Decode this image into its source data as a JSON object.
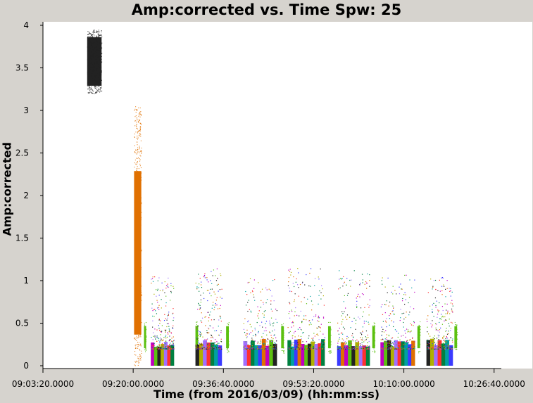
{
  "title": "Amp:corrected vs. Time Spw: 25",
  "chart_data": {
    "type": "scatter",
    "title": "Amp:corrected vs. Time Spw: 25",
    "xlabel": "Time (from 2016/03/09) (hh:mm:ss)",
    "ylabel": "Amp:corrected",
    "x_tick_labels": [
      "09:03:20.0000",
      "09:20:00.0000",
      "09:36:40.0000",
      "09:53:20.0000",
      "10:10:00.0000",
      "10:26:40.0000"
    ],
    "y_tick_labels": [
      "0",
      "0.5",
      "1",
      "1.5",
      "2",
      "2.5",
      "3",
      "3.5",
      "4"
    ],
    "xlim": [
      "09:03:20",
      "10:28:00"
    ],
    "ylim": [
      0,
      4
    ],
    "grid": false,
    "scans": [
      {
        "t_start": "09:11:30",
        "t_end": "09:14:10",
        "amp_min": 3.2,
        "amp_max": 3.95,
        "color": "#222222"
      },
      {
        "t_start": "09:20:10",
        "t_end": "09:21:30",
        "amp_min": 0.0,
        "amp_max": 3.05,
        "color": "#e07000"
      },
      {
        "t_start": "09:22:00",
        "t_end": "09:22:20",
        "amp_min": 0.15,
        "amp_max": 0.52,
        "color": "#5cc010"
      },
      {
        "t_start": "09:23:15",
        "t_end": "09:27:30",
        "amp_min": 0.0,
        "amp_max": 1.05,
        "color": "#3a3aff"
      },
      {
        "t_start": "09:31:30",
        "t_end": "09:32:00",
        "amp_min": 0.15,
        "amp_max": 0.52,
        "color": "#5cc010"
      },
      {
        "t_start": "09:31:30",
        "t_end": "09:36:20",
        "amp_min": 0.0,
        "amp_max": 1.15,
        "color": "#00a0a0"
      },
      {
        "t_start": "09:37:10",
        "t_end": "09:37:40",
        "amp_min": 0.15,
        "amp_max": 0.52,
        "color": "#5cc010"
      },
      {
        "t_start": "09:40:20",
        "t_end": "09:46:30",
        "amp_min": 0.0,
        "amp_max": 1.05,
        "color": "#c000c0"
      },
      {
        "t_start": "09:47:20",
        "t_end": "09:47:50",
        "amp_min": 0.15,
        "amp_max": 0.52,
        "color": "#5cc010"
      },
      {
        "t_start": "09:48:30",
        "t_end": "09:55:20",
        "amp_min": 0.0,
        "amp_max": 1.15,
        "color": "#e07000"
      },
      {
        "t_start": "09:56:00",
        "t_end": "09:56:30",
        "amp_min": 0.15,
        "amp_max": 0.52,
        "color": "#5cc010"
      },
      {
        "t_start": "09:57:40",
        "t_end": "10:03:40",
        "amp_min": 0.0,
        "amp_max": 1.15,
        "color": "#3a3aff"
      },
      {
        "t_start": "10:04:10",
        "t_end": "10:04:40",
        "amp_min": 0.15,
        "amp_max": 0.52,
        "color": "#5cc010"
      },
      {
        "t_start": "10:05:40",
        "t_end": "10:12:00",
        "amp_min": 0.0,
        "amp_max": 1.1,
        "color": "#00a0a0"
      },
      {
        "t_start": "10:12:30",
        "t_end": "10:13:00",
        "amp_min": 0.15,
        "amp_max": 0.52,
        "color": "#5cc010"
      },
      {
        "t_start": "10:14:10",
        "t_end": "10:19:00",
        "amp_min": 0.0,
        "amp_max": 1.05,
        "color": "#c000c0"
      },
      {
        "t_start": "10:19:20",
        "t_end": "10:19:50",
        "amp_min": 0.15,
        "amp_max": 0.52,
        "color": "#5cc010"
      }
    ],
    "series_colors": [
      "#00a0a0",
      "#3a3aff",
      "#e07000",
      "#c000c0",
      "#5cc010",
      "#222222",
      "#b0b000",
      "#a070ff",
      "#ff3030",
      "#008040"
    ]
  }
}
